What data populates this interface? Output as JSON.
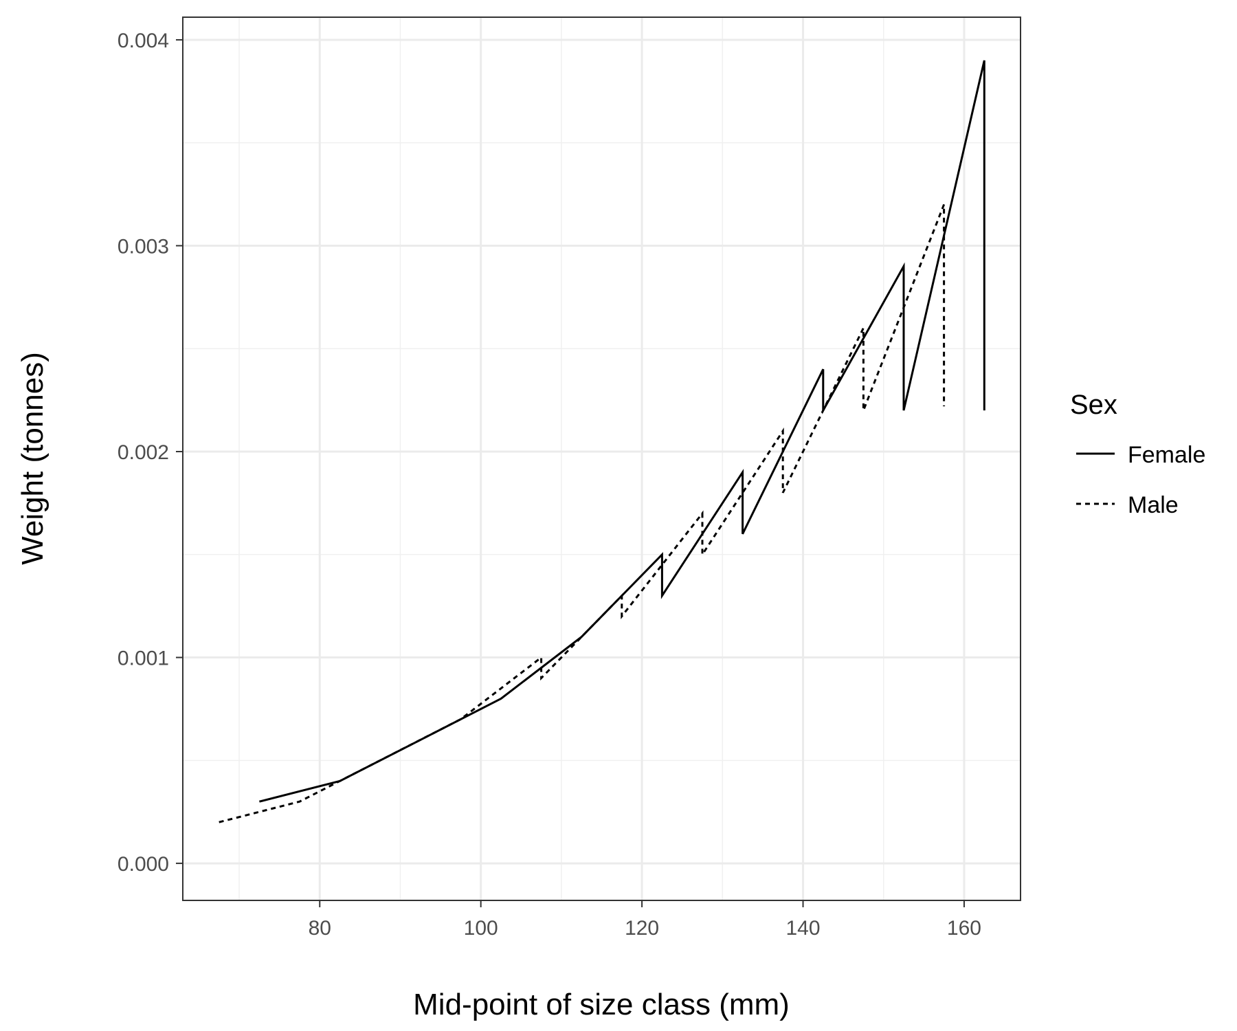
{
  "chart_data": {
    "type": "line",
    "xlabel": "Mid-point of size class (mm)",
    "ylabel": "Weight (tonnes)",
    "xlim": [
      63,
      167
    ],
    "ylim": [
      -0.00018,
      0.00411
    ],
    "x_ticks": [
      80,
      100,
      120,
      140,
      160
    ],
    "x_tick_labels": [
      "80",
      "100",
      "120",
      "140",
      "160"
    ],
    "y_ticks": [
      0.0,
      0.001,
      0.002,
      0.003,
      0.004
    ],
    "y_tick_labels": [
      "0.000",
      "0.001",
      "0.002",
      "0.003",
      "0.004"
    ],
    "grid": true,
    "legend": {
      "title": "Sex",
      "placement": "right"
    },
    "series": [
      {
        "name": "Female",
        "line_style": "solid",
        "color": "#000000",
        "points": [
          [
            72.5,
            0.0003
          ],
          [
            82.5,
            0.0004
          ],
          [
            92.5,
            0.0006
          ],
          [
            102.5,
            0.0008
          ],
          [
            112.5,
            0.0011
          ],
          [
            122.5,
            0.0015
          ],
          [
            122.5,
            0.0013
          ],
          [
            132.5,
            0.0019
          ],
          [
            132.5,
            0.0016
          ],
          [
            142.5,
            0.0024
          ],
          [
            142.5,
            0.0022
          ],
          [
            152.5,
            0.0029
          ],
          [
            152.5,
            0.0022
          ],
          [
            162.5,
            0.0039
          ],
          [
            162.5,
            0.0022
          ]
        ]
      },
      {
        "name": "Male",
        "line_style": "dashed",
        "color": "#000000",
        "points": [
          [
            67.5,
            0.0002
          ],
          [
            77.5,
            0.0003
          ],
          [
            87.5,
            0.0005
          ],
          [
            97.5,
            0.0007
          ],
          [
            107.5,
            0.001
          ],
          [
            107.5,
            0.0009
          ],
          [
            117.5,
            0.0013
          ],
          [
            117.5,
            0.0012
          ],
          [
            127.5,
            0.0017
          ],
          [
            127.5,
            0.0015
          ],
          [
            137.5,
            0.0021
          ],
          [
            137.5,
            0.0018
          ],
          [
            147.5,
            0.0026
          ],
          [
            147.5,
            0.0022
          ],
          [
            157.5,
            0.0032
          ],
          [
            157.5,
            0.00222
          ]
        ]
      }
    ]
  }
}
